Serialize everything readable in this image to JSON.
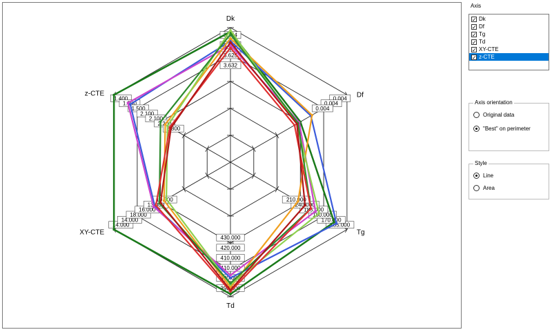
{
  "sidebar": {
    "axis_title": "Axis",
    "axes": [
      {
        "label": "Dk",
        "checked": true,
        "selected": false
      },
      {
        "label": "Df",
        "checked": true,
        "selected": false
      },
      {
        "label": "Tg",
        "checked": true,
        "selected": false
      },
      {
        "label": "Td",
        "checked": true,
        "selected": false
      },
      {
        "label": "XY-CTE",
        "checked": true,
        "selected": false
      },
      {
        "label": "z-CTE",
        "checked": true,
        "selected": true
      }
    ],
    "orientation": {
      "title": "Axis orientation",
      "options": [
        {
          "label": "Original data",
          "selected": false
        },
        {
          "label": "\"Best\" on perimeter",
          "selected": true
        }
      ]
    },
    "style": {
      "title": "Style",
      "options": [
        {
          "label": "Line",
          "selected": true
        },
        {
          "label": "Area",
          "selected": false
        }
      ]
    }
  },
  "chart_data": {
    "type": "radar",
    "axes": [
      "Dk",
      "Df",
      "Tg",
      "Td",
      "XY-CTE",
      "z-CTE"
    ],
    "grid_levels": 5,
    "axis_value_labels": {
      "Dk": [
        "3.354",
        "3.380",
        "3.625",
        "3.632"
      ],
      "Df": [
        "0.004",
        "0.004",
        "0.004"
      ],
      "Tg": [
        "185.000",
        "170.000",
        "180.000",
        "185.000",
        "240.000",
        "210.000"
      ],
      "Td": [
        "390.000",
        "400.000",
        "410.000",
        "410.000",
        "420.000",
        "430.000"
      ],
      "XY-CTE": [
        "14.000",
        "14.000",
        "18.000",
        "16.000",
        "13.000",
        "10.000"
      ],
      "z-CTE": [
        "1.400",
        "1.500",
        "1.500",
        "2.100",
        "2.100",
        "2.200",
        "2.800"
      ]
    },
    "series": [
      {
        "color": "#1a7a1a",
        "values": [
          0.97,
          0.6,
          0.89,
          0.98,
          1.0,
          1.0
        ],
        "width": 2.5
      },
      {
        "color": "#3b5bdb",
        "values": [
          0.9,
          0.69,
          0.91,
          0.86,
          0.65,
          0.86
        ],
        "width": 2.2
      },
      {
        "color": "#cc44cc",
        "values": [
          0.87,
          0.59,
          0.73,
          0.84,
          0.66,
          0.88
        ],
        "width": 2.2
      },
      {
        "color": "#f0a020",
        "values": [
          0.92,
          0.7,
          0.58,
          0.93,
          0.57,
          0.56
        ],
        "width": 2.2
      },
      {
        "color": "#8fd14f",
        "values": [
          0.98,
          0.57,
          0.76,
          0.91,
          0.55,
          0.54
        ],
        "width": 2.2
      },
      {
        "color": "#2e8b2e",
        "values": [
          0.95,
          0.58,
          0.69,
          0.9,
          0.61,
          0.6
        ],
        "width": 2.2
      },
      {
        "color": "#e03030",
        "values": [
          0.85,
          0.55,
          0.69,
          0.96,
          0.64,
          0.52
        ],
        "width": 2.2
      },
      {
        "color": "#b01818",
        "values": [
          0.89,
          0.57,
          0.64,
          0.95,
          0.6,
          0.51
        ],
        "width": 2.2
      }
    ]
  }
}
